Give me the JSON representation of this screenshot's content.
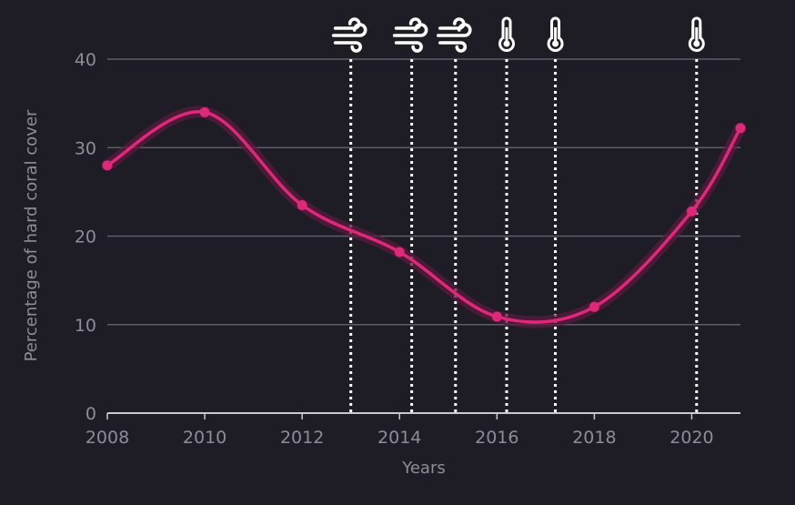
{
  "chart_data": {
    "type": "line",
    "title": "",
    "xlabel": "Years",
    "ylabel": "Percentage of hard coral cover",
    "xlim": [
      2008,
      2021
    ],
    "ylim": [
      0,
      40
    ],
    "x_ticks": [
      2008,
      2010,
      2012,
      2014,
      2016,
      2018,
      2020
    ],
    "x_tick_labels": [
      "2008",
      "2010",
      "2012",
      "2014",
      "2016",
      "2018",
      "2020"
    ],
    "y_ticks": [
      0,
      10,
      20,
      30,
      40
    ],
    "y_tick_labels": [
      "0",
      "10",
      "20",
      "30",
      "40"
    ],
    "grid": "horizontal",
    "legend": "none",
    "series": [
      {
        "color": "#e0287a",
        "points": [
          {
            "x": 2008,
            "y": 28.0
          },
          {
            "x": 2010,
            "y": 34.0
          },
          {
            "x": 2012,
            "y": 23.5
          },
          {
            "x": 2014,
            "y": 18.2
          },
          {
            "x": 2016,
            "y": 10.9
          },
          {
            "x": 2018,
            "y": 12.0
          },
          {
            "x": 2020,
            "y": 22.8
          },
          {
            "x": 2021,
            "y": 32.2
          }
        ]
      }
    ],
    "events": [
      {
        "x": 2013.0,
        "type": "cyclone",
        "icon": "cyclone-wind-icon"
      },
      {
        "x": 2014.25,
        "type": "cyclone",
        "icon": "cyclone-wind-icon"
      },
      {
        "x": 2015.15,
        "type": "cyclone",
        "icon": "cyclone-wind-icon"
      },
      {
        "x": 2016.2,
        "type": "heatwave",
        "icon": "thermometer-icon"
      },
      {
        "x": 2017.2,
        "type": "heatwave",
        "icon": "thermometer-icon"
      },
      {
        "x": 2020.1,
        "type": "heatwave",
        "icon": "thermometer-icon"
      }
    ],
    "colors": {
      "background": "#1e1d26",
      "line": "#e0287a",
      "band": "#5a1a3e",
      "grid": "#5e5d66",
      "axis": "#c9c8ce",
      "text": "#8e8c96",
      "event_line": "#ffffff",
      "icon": "#ffffff"
    }
  }
}
